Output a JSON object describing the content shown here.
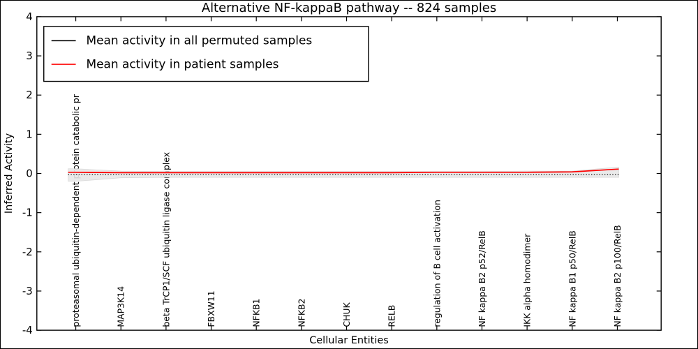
{
  "chart_data": {
    "type": "line",
    "title": "Alternative NF-kappaB pathway -- 824 samples",
    "xlabel": "Cellular Entities",
    "ylabel": "Inferred Activity",
    "ylim": [
      -4,
      4
    ],
    "yticks": [
      4,
      3,
      2,
      1,
      0,
      -1,
      -2,
      -3,
      -4
    ],
    "grid": false,
    "legend_position": "upper left",
    "categories": [
      "proteasomal ubiquitin-dependent protein catabolic pr",
      "MAP3K14",
      "beta TrCP1/SCF ubiquitin ligase complex",
      "FBXW11",
      "NFKB1",
      "NFKB2",
      "CHUK",
      "RELB",
      "regulation of B cell activation",
      "NF kappa B2 p52/RelB",
      "IKK alpha homodimer",
      "NF kappa B1 p50/RelB",
      "NF kappa B2 p100/RelB"
    ],
    "series": [
      {
        "name": "Mean activity in all permuted samples",
        "color": "#000000",
        "line_style": "dotted",
        "values": [
          -0.03,
          -0.03,
          -0.03,
          -0.03,
          -0.03,
          -0.03,
          -0.03,
          -0.03,
          -0.03,
          -0.03,
          -0.03,
          -0.03,
          -0.03
        ]
      },
      {
        "name": "Mean activity in patient samples",
        "color": "#ff0000",
        "line_style": "solid",
        "values": [
          0.03,
          0.02,
          0.02,
          0.02,
          0.02,
          0.02,
          0.02,
          0.02,
          0.03,
          0.03,
          0.03,
          0.04,
          0.11
        ]
      }
    ],
    "band": {
      "name": "permuted-samples-range",
      "color": "#e8e8e8",
      "edge_color": "#d9d9d9",
      "upper": [
        0.12,
        0.06,
        0.05,
        0.05,
        0.05,
        0.05,
        0.05,
        0.05,
        0.05,
        0.05,
        0.06,
        0.06,
        0.16
      ],
      "lower": [
        -0.2,
        -0.11,
        -0.1,
        -0.1,
        -0.1,
        -0.1,
        -0.1,
        -0.1,
        -0.1,
        -0.1,
        -0.1,
        -0.1,
        -0.1
      ]
    }
  }
}
